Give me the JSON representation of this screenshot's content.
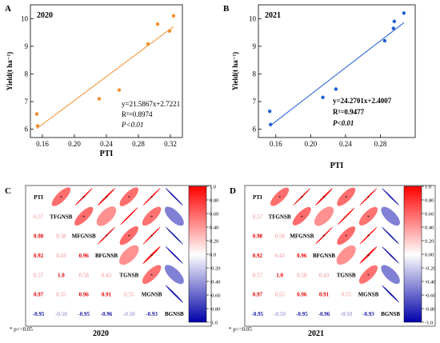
{
  "chart_data": [
    {
      "type": "scatter",
      "panel": "A",
      "title": "2020",
      "xlabel": "PTI",
      "ylabel": "Yield(t ha⁻¹)",
      "xlim": [
        0.145,
        0.335
      ],
      "ylim": [
        5.7,
        10.5
      ],
      "xticks": [
        "0.16",
        "0.20",
        "0.24",
        "0.28",
        "0.32"
      ],
      "yticks": [
        "6",
        "7",
        "8",
        "9",
        "10"
      ],
      "color": "#f28e2b",
      "points": [
        {
          "x": 0.153,
          "y": 6.55
        },
        {
          "x": 0.154,
          "y": 6.12
        },
        {
          "x": 0.231,
          "y": 7.1
        },
        {
          "x": 0.256,
          "y": 7.42
        },
        {
          "x": 0.292,
          "y": 9.08
        },
        {
          "x": 0.304,
          "y": 9.8
        },
        {
          "x": 0.319,
          "y": 9.55
        },
        {
          "x": 0.324,
          "y": 10.1
        }
      ],
      "fit": {
        "slope": 21.5867,
        "intercept": 2.7221,
        "x_range": [
          0.153,
          0.324
        ]
      },
      "annotations": [
        "y=21.5867x+2.7221",
        "R²=0.8974",
        "P<0.01"
      ]
    },
    {
      "type": "scatter",
      "panel": "B",
      "title": "2021",
      "xlabel": "PTI",
      "ylabel": "Yield(t ha⁻¹)",
      "xlim": [
        0.14,
        0.32
      ],
      "ylim": [
        5.7,
        10.5
      ],
      "xticks": [
        "0.16",
        "0.20",
        "0.24",
        "0.28"
      ],
      "yticks": [
        "6",
        "7",
        "8",
        "9",
        "10"
      ],
      "color": "#1f5fd6",
      "points": [
        {
          "x": 0.153,
          "y": 6.65
        },
        {
          "x": 0.154,
          "y": 6.17
        },
        {
          "x": 0.214,
          "y": 7.15
        },
        {
          "x": 0.229,
          "y": 7.45
        },
        {
          "x": 0.285,
          "y": 9.2
        },
        {
          "x": 0.295,
          "y": 9.65
        },
        {
          "x": 0.296,
          "y": 9.9
        },
        {
          "x": 0.307,
          "y": 10.2
        }
      ],
      "fit": {
        "slope": 24.2701,
        "intercept": 2.4007,
        "x_range": [
          0.153,
          0.307
        ]
      },
      "annotations": [
        "y=24.2701x+2.4007",
        "R²=0.9477",
        "P<0.01"
      ]
    },
    {
      "type": "heatmap",
      "panel": "C",
      "title": "2020",
      "variables": [
        "PTI",
        "TFGNSB",
        "MFGNSB",
        "BFGNSB",
        "TGNSB",
        "MGNSB",
        "BGNSB"
      ],
      "lower_labels": [
        [],
        [
          "0.57"
        ],
        [
          "0.98",
          "0.58"
        ],
        [
          "0.92",
          "0.43",
          "0.96"
        ],
        [
          "0.57",
          "1.0",
          "0.58",
          "0.43"
        ],
        [
          "0.97",
          "0.55",
          "0.96",
          "0.91",
          "0.55"
        ],
        [
          "-0.95",
          "-0.50",
          "-0.95",
          "-0.96",
          "-0.50",
          "-0.93"
        ]
      ],
      "matrix": [
        [
          1,
          0.57,
          0.98,
          0.92,
          0.57,
          0.97,
          -0.95
        ],
        [
          0.57,
          1,
          0.58,
          0.43,
          1.0,
          0.55,
          -0.5
        ],
        [
          0.98,
          0.58,
          1,
          0.96,
          0.58,
          0.96,
          -0.95
        ],
        [
          0.92,
          0.43,
          0.96,
          1,
          0.43,
          0.91,
          -0.96
        ],
        [
          0.57,
          1.0,
          0.58,
          0.43,
          1,
          0.55,
          -0.5
        ],
        [
          0.97,
          0.55,
          0.96,
          0.91,
          0.55,
          1,
          -0.93
        ],
        [
          -0.95,
          -0.5,
          -0.95,
          -0.96,
          -0.5,
          -0.93,
          1
        ]
      ],
      "colorbar": {
        "ticks": [
          "1.0",
          "0.80",
          "0.60",
          "0.40",
          "0.20",
          "0.0",
          "-0.20",
          "-0.40",
          "-0.60",
          "-0.80",
          "-1.0"
        ]
      },
      "footnote": "* p<=0.05"
    },
    {
      "type": "heatmap",
      "panel": "D",
      "title": "2021",
      "variables": [
        "PTI",
        "TFGNSB",
        "MFGNSB",
        "BFGNSB",
        "TGNSB",
        "MGNSB",
        "BGNSB"
      ],
      "lower_labels": [
        [],
        [
          "0.57"
        ],
        [
          "0.98",
          "0.58"
        ],
        [
          "0.92",
          "0.43",
          "0.96"
        ],
        [
          "0.57",
          "1.0",
          "0.58",
          "0.43"
        ],
        [
          "0.97",
          "0.55",
          "0.96",
          "0.91",
          "0.55"
        ],
        [
          "-0.95",
          "-0.50",
          "-0.95",
          "-0.96",
          "-0.50",
          "-0.93"
        ]
      ],
      "matrix": [
        [
          1,
          0.57,
          0.98,
          0.92,
          0.57,
          0.97,
          -0.95
        ],
        [
          0.57,
          1,
          0.58,
          0.43,
          1.0,
          0.55,
          -0.5
        ],
        [
          0.98,
          0.58,
          1,
          0.96,
          0.58,
          0.96,
          -0.95
        ],
        [
          0.92,
          0.43,
          0.96,
          1,
          0.43,
          0.91,
          -0.96
        ],
        [
          0.57,
          1.0,
          0.58,
          0.43,
          1,
          0.55,
          -0.5
        ],
        [
          0.97,
          0.55,
          0.96,
          0.91,
          0.55,
          1,
          -0.93
        ],
        [
          -0.95,
          -0.5,
          -0.95,
          -0.96,
          -0.5,
          -0.93,
          1
        ]
      ],
      "colorbar": {
        "ticks": [
          "1.0",
          "0.80",
          "0.60",
          "0.40",
          "0.20",
          "0.00",
          "-0.20",
          "-0.40",
          "-0.60",
          "-0.80",
          "-1.0"
        ]
      },
      "footnote": "* p<=0.05"
    }
  ]
}
